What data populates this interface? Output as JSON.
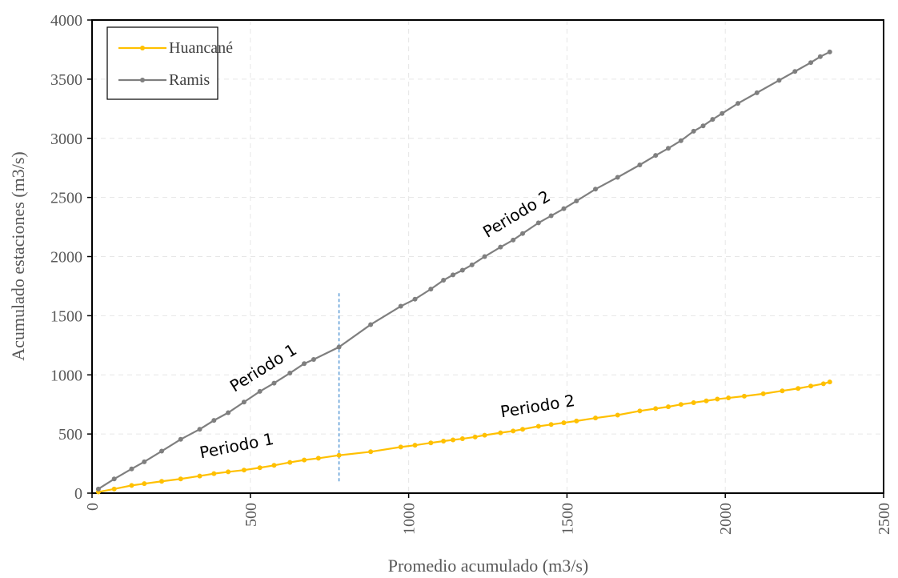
{
  "chart_data": {
    "type": "line",
    "xlabel": "Promedio acumulado (m3/s)",
    "ylabel": "Acumulado estaciones (m3/s)",
    "xlim": [
      0,
      2500
    ],
    "ylim": [
      0,
      4000
    ],
    "x_ticks": [
      "0",
      "500",
      "1000",
      "1500",
      "2000",
      "2500"
    ],
    "y_ticks": [
      "0",
      "500",
      "1000",
      "1500",
      "2000",
      "2500",
      "3000",
      "3500",
      "4000"
    ],
    "grid": true,
    "legend_position": "top-left",
    "series": [
      {
        "name": "Huancané",
        "color": "#FFC000",
        "points": [
          [
            20,
            10
          ],
          [
            70,
            35
          ],
          [
            125,
            65
          ],
          [
            165,
            80
          ],
          [
            220,
            100
          ],
          [
            280,
            120
          ],
          [
            340,
            145
          ],
          [
            385,
            165
          ],
          [
            430,
            180
          ],
          [
            480,
            195
          ],
          [
            530,
            215
          ],
          [
            575,
            235
          ],
          [
            625,
            260
          ],
          [
            670,
            280
          ],
          [
            715,
            295
          ],
          [
            780,
            320
          ],
          [
            880,
            350
          ],
          [
            975,
            390
          ],
          [
            1020,
            405
          ],
          [
            1070,
            425
          ],
          [
            1110,
            440
          ],
          [
            1140,
            450
          ],
          [
            1170,
            460
          ],
          [
            1210,
            475
          ],
          [
            1240,
            490
          ],
          [
            1290,
            510
          ],
          [
            1330,
            525
          ],
          [
            1360,
            540
          ],
          [
            1410,
            565
          ],
          [
            1450,
            580
          ],
          [
            1490,
            595
          ],
          [
            1530,
            610
          ],
          [
            1590,
            635
          ],
          [
            1660,
            660
          ],
          [
            1730,
            695
          ],
          [
            1780,
            715
          ],
          [
            1820,
            730
          ],
          [
            1860,
            750
          ],
          [
            1900,
            765
          ],
          [
            1940,
            780
          ],
          [
            1975,
            795
          ],
          [
            2010,
            805
          ],
          [
            2060,
            820
          ],
          [
            2120,
            840
          ],
          [
            2180,
            865
          ],
          [
            2230,
            885
          ],
          [
            2270,
            905
          ],
          [
            2310,
            925
          ],
          [
            2330,
            940
          ]
        ]
      },
      {
        "name": "Ramis",
        "color": "#7F7F7F",
        "points": [
          [
            20,
            35
          ],
          [
            70,
            120
          ],
          [
            125,
            205
          ],
          [
            165,
            265
          ],
          [
            220,
            355
          ],
          [
            280,
            455
          ],
          [
            340,
            540
          ],
          [
            385,
            615
          ],
          [
            430,
            680
          ],
          [
            480,
            770
          ],
          [
            530,
            860
          ],
          [
            575,
            930
          ],
          [
            625,
            1015
          ],
          [
            670,
            1095
          ],
          [
            700,
            1130
          ],
          [
            780,
            1235
          ],
          [
            880,
            1425
          ],
          [
            975,
            1580
          ],
          [
            1020,
            1640
          ],
          [
            1070,
            1725
          ],
          [
            1110,
            1800
          ],
          [
            1140,
            1845
          ],
          [
            1170,
            1885
          ],
          [
            1200,
            1930
          ],
          [
            1240,
            2000
          ],
          [
            1290,
            2080
          ],
          [
            1330,
            2140
          ],
          [
            1360,
            2195
          ],
          [
            1410,
            2285
          ],
          [
            1450,
            2345
          ],
          [
            1490,
            2405
          ],
          [
            1530,
            2470
          ],
          [
            1590,
            2570
          ],
          [
            1660,
            2670
          ],
          [
            1730,
            2775
          ],
          [
            1780,
            2855
          ],
          [
            1820,
            2915
          ],
          [
            1860,
            2980
          ],
          [
            1900,
            3060
          ],
          [
            1930,
            3105
          ],
          [
            1960,
            3160
          ],
          [
            1990,
            3210
          ],
          [
            2040,
            3295
          ],
          [
            2100,
            3385
          ],
          [
            2170,
            3490
          ],
          [
            2220,
            3565
          ],
          [
            2270,
            3640
          ],
          [
            2300,
            3690
          ],
          [
            2330,
            3730
          ]
        ]
      }
    ],
    "divider": {
      "x": 780,
      "y_from": 100,
      "y_to": 1700,
      "color": "#5B9BD5"
    },
    "annotations": [
      {
        "text": "Periodo 1",
        "series": "Ramis",
        "x": 550,
        "y": 1020,
        "angle": -32
      },
      {
        "text": "Periodo 2",
        "series": "Ramis",
        "x": 1350,
        "y": 2320,
        "angle": -31
      },
      {
        "text": "Periodo 1",
        "series": "Huancané",
        "x": 460,
        "y": 355,
        "angle": -11
      },
      {
        "text": "Periodo 2",
        "series": "Huancané",
        "x": 1410,
        "y": 690,
        "angle": -9
      }
    ]
  }
}
